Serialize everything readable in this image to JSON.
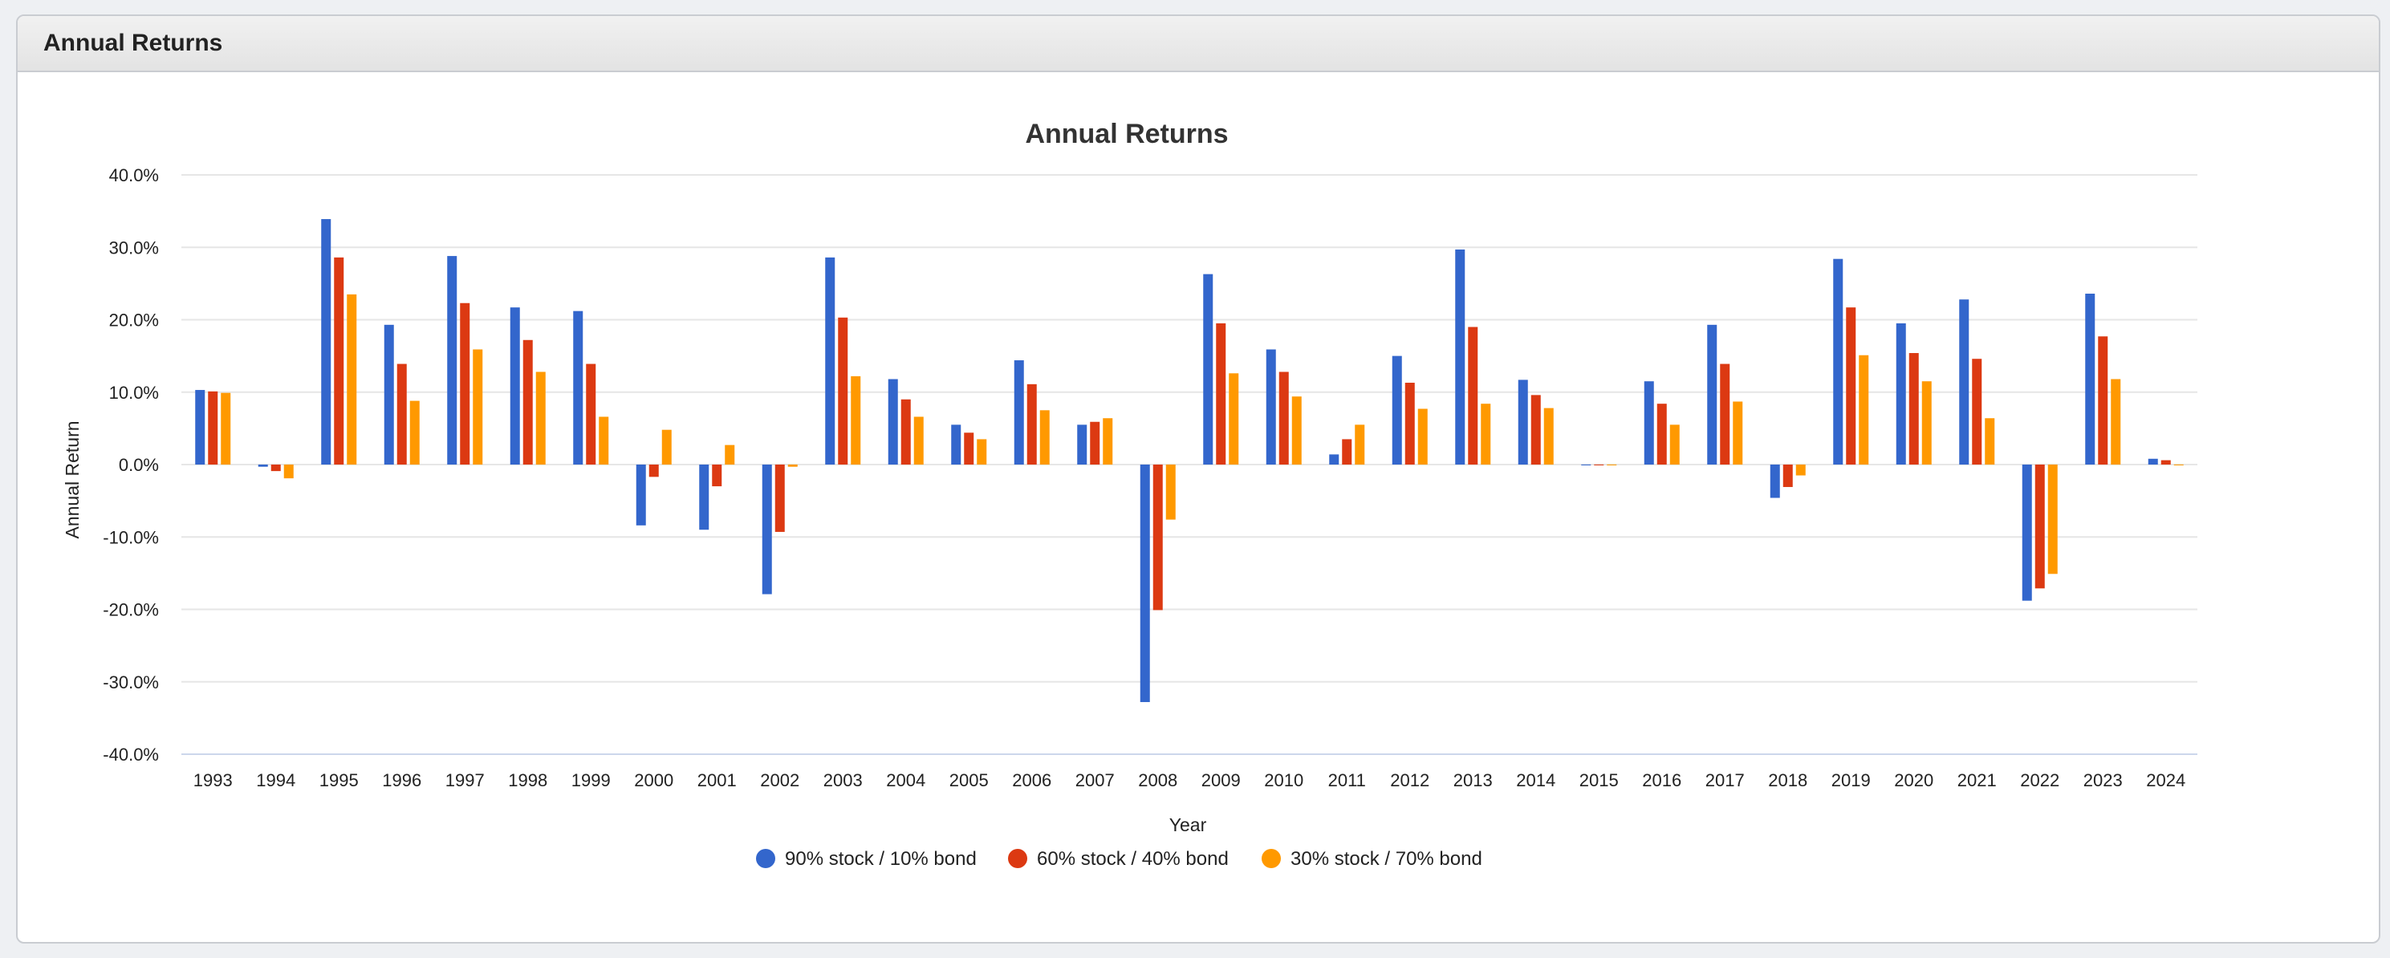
{
  "panel": {
    "title": "Annual Returns"
  },
  "chart_data": {
    "type": "bar",
    "title": "Annual Returns",
    "xlabel": "Year",
    "ylabel": "Annual Return",
    "ylim": [
      -40,
      40
    ],
    "yticks": [
      40,
      30,
      20,
      10,
      0,
      -10,
      -20,
      -30,
      -40
    ],
    "ytick_labels": [
      "40.0%",
      "30.0%",
      "20.0%",
      "10.0%",
      "0.0%",
      "-10.0%",
      "-20.0%",
      "-30.0%",
      "-40.0%"
    ],
    "grid": true,
    "legend_position": "bottom-center",
    "categories": [
      "1993",
      "1994",
      "1995",
      "1996",
      "1997",
      "1998",
      "1999",
      "2000",
      "2001",
      "2002",
      "2003",
      "2004",
      "2005",
      "2006",
      "2007",
      "2008",
      "2009",
      "2010",
      "2011",
      "2012",
      "2013",
      "2014",
      "2015",
      "2016",
      "2017",
      "2018",
      "2019",
      "2020",
      "2021",
      "2022",
      "2023",
      "2024"
    ],
    "series": [
      {
        "name": "90% stock / 10% bond",
        "color": "#3366cc",
        "values": [
          10.3,
          -0.3,
          33.9,
          19.3,
          28.8,
          21.7,
          21.2,
          -8.4,
          -9.0,
          -17.9,
          28.6,
          11.8,
          5.5,
          14.4,
          5.5,
          -32.8,
          26.3,
          15.9,
          1.4,
          15.0,
          29.7,
          11.7,
          -0.1,
          11.5,
          19.3,
          -4.6,
          28.4,
          19.5,
          22.8,
          -18.8,
          23.6,
          0.8
        ]
      },
      {
        "name": "60% stock / 40% bond",
        "color": "#dc3912",
        "values": [
          10.1,
          -0.9,
          28.6,
          13.9,
          22.3,
          17.2,
          13.9,
          -1.7,
          -3.0,
          -9.3,
          20.3,
          9.0,
          4.4,
          11.1,
          5.9,
          -20.1,
          19.5,
          12.8,
          3.5,
          11.3,
          19.0,
          9.6,
          -0.1,
          8.4,
          13.9,
          -3.1,
          21.7,
          15.4,
          14.6,
          -17.1,
          17.7,
          0.6
        ]
      },
      {
        "name": "30% stock / 70% bond",
        "color": "#ff9900",
        "values": [
          9.9,
          -1.9,
          23.5,
          8.8,
          15.9,
          12.8,
          6.6,
          4.8,
          2.7,
          -0.3,
          12.2,
          6.6,
          3.5,
          7.5,
          6.4,
          -7.6,
          12.6,
          9.4,
          5.5,
          7.7,
          8.4,
          7.8,
          -0.1,
          5.5,
          8.7,
          -1.5,
          15.1,
          11.5,
          6.4,
          -15.1,
          11.8,
          0.0
        ]
      }
    ]
  }
}
